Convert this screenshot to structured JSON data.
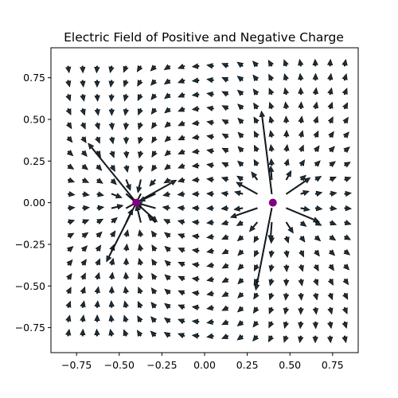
{
  "chart_data": {
    "type": "quiver",
    "title": "Electric Field of Positive and Negative Charge",
    "xlabel": "",
    "ylabel": "",
    "xlim": [
      -0.9,
      0.9
    ],
    "ylim": [
      -0.9,
      0.93
    ],
    "grid": false,
    "x_ticks": [
      -0.75,
      -0.5,
      -0.25,
      0.0,
      0.25,
      0.5,
      0.75
    ],
    "x_tick_labels": [
      "−0.75",
      "−0.50",
      "−0.25",
      "0.00",
      "0.25",
      "0.50",
      "0.75"
    ],
    "y_ticks": [
      0.75,
      0.5,
      0.25,
      0.0,
      -0.25,
      -0.5,
      -0.75
    ],
    "y_tick_labels": [
      "0.75",
      "0.50",
      "0.25",
      "0.00",
      "−0.25",
      "−0.50",
      "−0.75"
    ],
    "field_grid": {
      "min": -0.8,
      "max": 0.82,
      "count": 20
    },
    "charges": [
      {
        "name": "positive",
        "x": 0.4,
        "y": 0.0,
        "q": 1,
        "color": "#800080"
      },
      {
        "name": "negative",
        "x": -0.4,
        "y": 0.0,
        "q": -1,
        "color": "#800080"
      }
    ],
    "arrow_color": "#1f2f3a",
    "arrow_edge_color": "#000000"
  }
}
